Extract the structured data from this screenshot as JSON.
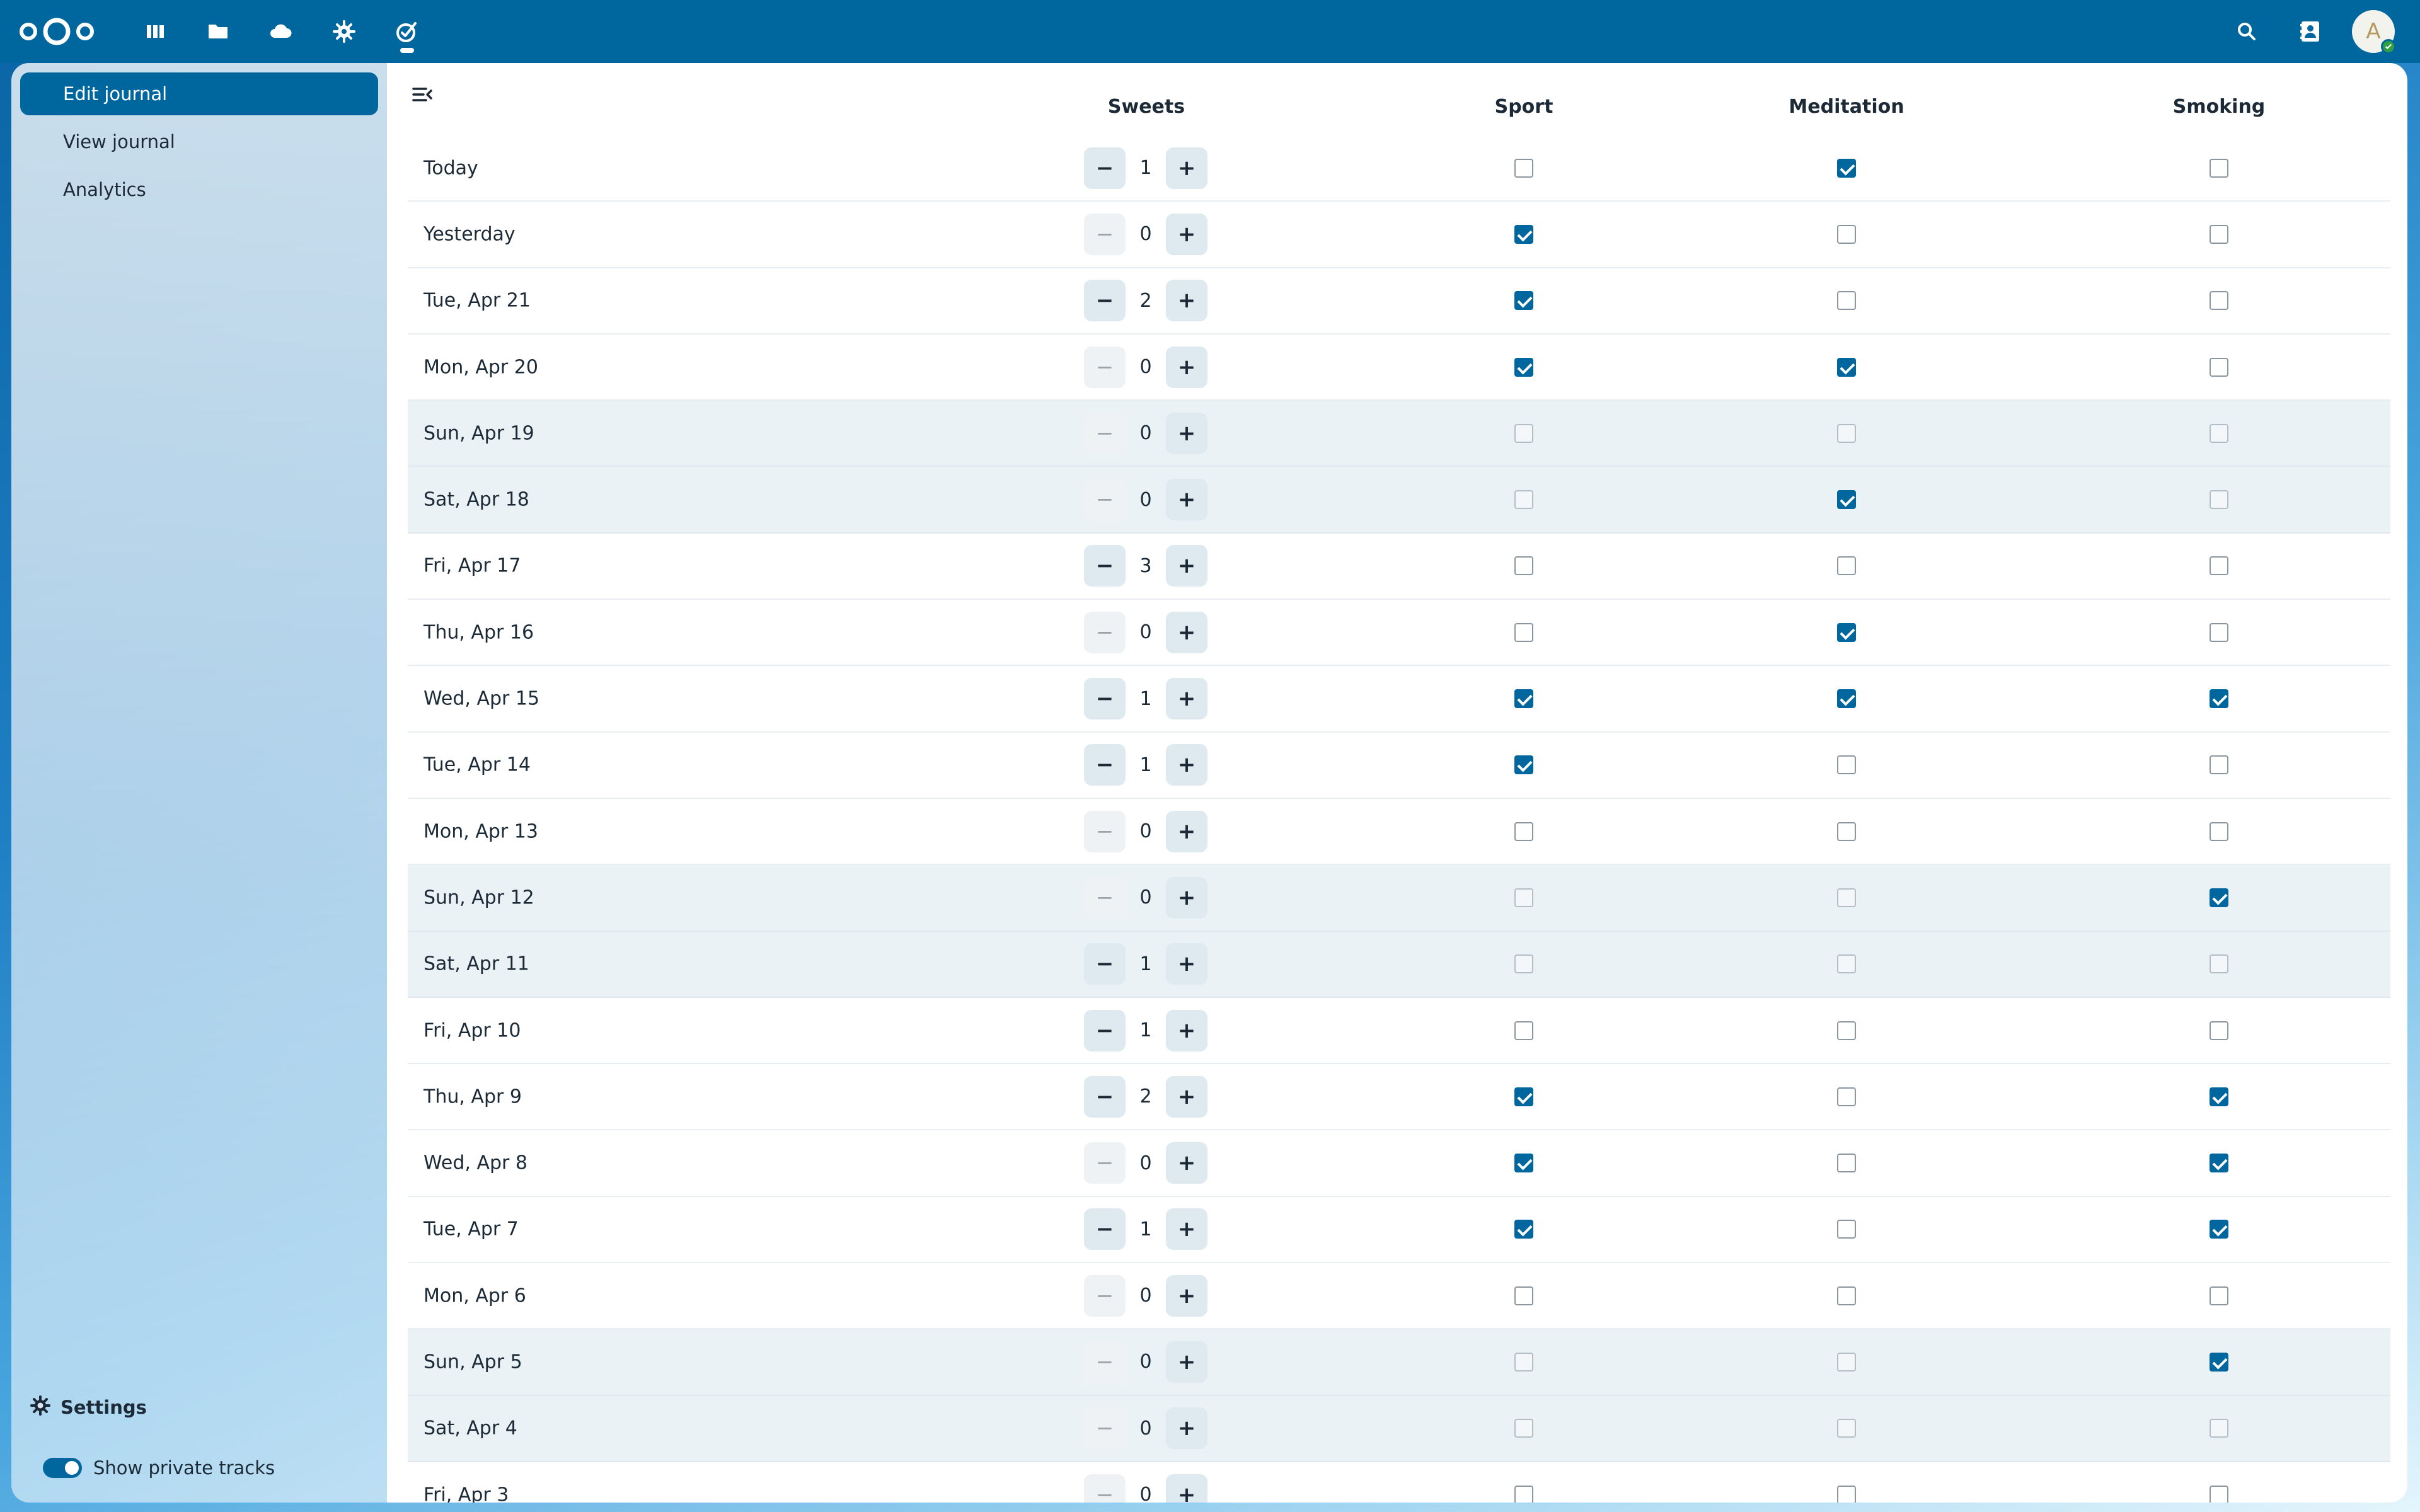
{
  "sidebar": {
    "nav": [
      {
        "label": "Edit journal",
        "active": true
      },
      {
        "label": "View journal",
        "active": false
      },
      {
        "label": "Analytics",
        "active": false
      }
    ],
    "settings_label": "Settings",
    "private_toggle_label": "Show private tracks",
    "private_toggle_on": true
  },
  "header": {
    "avatar_initial": "A",
    "apps": [
      "dashboard-icon",
      "files-icon",
      "cloud-icon",
      "settings-app-icon",
      "journal-app-icon"
    ],
    "right_icons": [
      "search-icon",
      "contacts-icon"
    ],
    "accent_color": "#00679e"
  },
  "table": {
    "columns": [
      "Sweets",
      "Sport",
      "Meditation",
      "Smoking"
    ],
    "rows": [
      {
        "date": "Today",
        "weekend": false,
        "sweets": "1",
        "sport": false,
        "meditation": true,
        "smoking": false
      },
      {
        "date": "Yesterday",
        "weekend": false,
        "sweets": "0",
        "sport": true,
        "meditation": false,
        "smoking": false
      },
      {
        "date": "Tue, Apr 21",
        "weekend": false,
        "sweets": "2",
        "sport": true,
        "meditation": false,
        "smoking": false
      },
      {
        "date": "Mon, Apr 20",
        "weekend": false,
        "sweets": "0",
        "sport": true,
        "meditation": true,
        "smoking": false
      },
      {
        "date": "Sun, Apr 19",
        "weekend": true,
        "sweets": "0",
        "sport": false,
        "meditation": false,
        "smoking": false
      },
      {
        "date": "Sat, Apr 18",
        "weekend": true,
        "sweets": "0",
        "sport": false,
        "meditation": true,
        "smoking": false
      },
      {
        "date": "Fri, Apr 17",
        "weekend": false,
        "sweets": "3",
        "sport": false,
        "meditation": false,
        "smoking": false
      },
      {
        "date": "Thu, Apr 16",
        "weekend": false,
        "sweets": "0",
        "sport": false,
        "meditation": true,
        "smoking": false
      },
      {
        "date": "Wed, Apr 15",
        "weekend": false,
        "sweets": "1",
        "sport": true,
        "meditation": true,
        "smoking": true
      },
      {
        "date": "Tue, Apr 14",
        "weekend": false,
        "sweets": "1",
        "sport": true,
        "meditation": false,
        "smoking": false
      },
      {
        "date": "Mon, Apr 13",
        "weekend": false,
        "sweets": "0",
        "sport": false,
        "meditation": false,
        "smoking": false
      },
      {
        "date": "Sun, Apr 12",
        "weekend": true,
        "sweets": "0",
        "sport": false,
        "meditation": false,
        "smoking": true
      },
      {
        "date": "Sat, Apr 11",
        "weekend": true,
        "sweets": "1",
        "sport": false,
        "meditation": false,
        "smoking": false
      },
      {
        "date": "Fri, Apr 10",
        "weekend": false,
        "sweets": "1",
        "sport": false,
        "meditation": false,
        "smoking": false
      },
      {
        "date": "Thu, Apr 9",
        "weekend": false,
        "sweets": "2",
        "sport": true,
        "meditation": false,
        "smoking": true
      },
      {
        "date": "Wed, Apr 8",
        "weekend": false,
        "sweets": "0",
        "sport": true,
        "meditation": false,
        "smoking": true
      },
      {
        "date": "Tue, Apr 7",
        "weekend": false,
        "sweets": "1",
        "sport": true,
        "meditation": false,
        "smoking": true
      },
      {
        "date": "Mon, Apr 6",
        "weekend": false,
        "sweets": "0",
        "sport": false,
        "meditation": false,
        "smoking": false
      },
      {
        "date": "Sun, Apr 5",
        "weekend": true,
        "sweets": "0",
        "sport": false,
        "meditation": false,
        "smoking": true
      },
      {
        "date": "Sat, Apr 4",
        "weekend": true,
        "sweets": "0",
        "sport": false,
        "meditation": false,
        "smoking": false
      },
      {
        "date": "Fri, Apr 3",
        "weekend": false,
        "sweets": "0",
        "sport": false,
        "meditation": false,
        "smoking": false
      }
    ]
  }
}
